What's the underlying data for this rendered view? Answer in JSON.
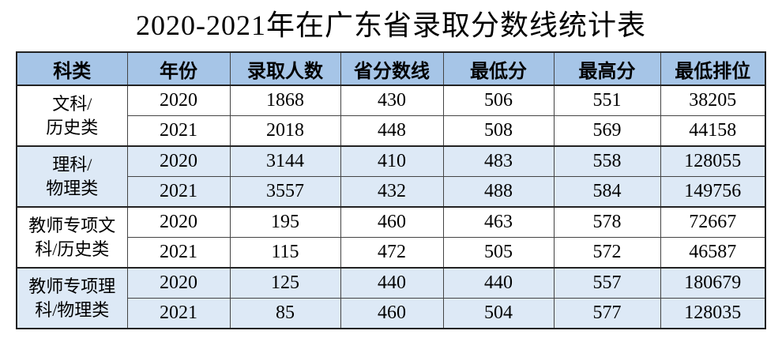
{
  "title": "2020-2021年在广东省录取分数线统计表",
  "table": {
    "headers": [
      "科类",
      "年份",
      "录取人数",
      "省分数线",
      "最低分",
      "最高分",
      "最低排位"
    ],
    "groups": [
      {
        "label": [
          "文科/",
          "历史类"
        ],
        "rows": [
          [
            2020,
            1868,
            430,
            506,
            551,
            38205
          ],
          [
            2021,
            2018,
            448,
            508,
            569,
            44158
          ]
        ]
      },
      {
        "label": [
          "理科/",
          "物理类"
        ],
        "rows": [
          [
            2020,
            3144,
            410,
            483,
            558,
            128055
          ],
          [
            2021,
            3557,
            432,
            488,
            584,
            149756
          ]
        ]
      },
      {
        "label": [
          "教师专项文",
          "科/历史类"
        ],
        "rows": [
          [
            2020,
            195,
            460,
            463,
            578,
            72667
          ],
          [
            2021,
            115,
            472,
            505,
            572,
            46587
          ]
        ]
      },
      {
        "label": [
          "教师专项理",
          "科/物理类"
        ],
        "rows": [
          [
            2020,
            125,
            440,
            440,
            557,
            180679
          ],
          [
            2021,
            85,
            460,
            504,
            577,
            128035
          ]
        ]
      }
    ]
  }
}
